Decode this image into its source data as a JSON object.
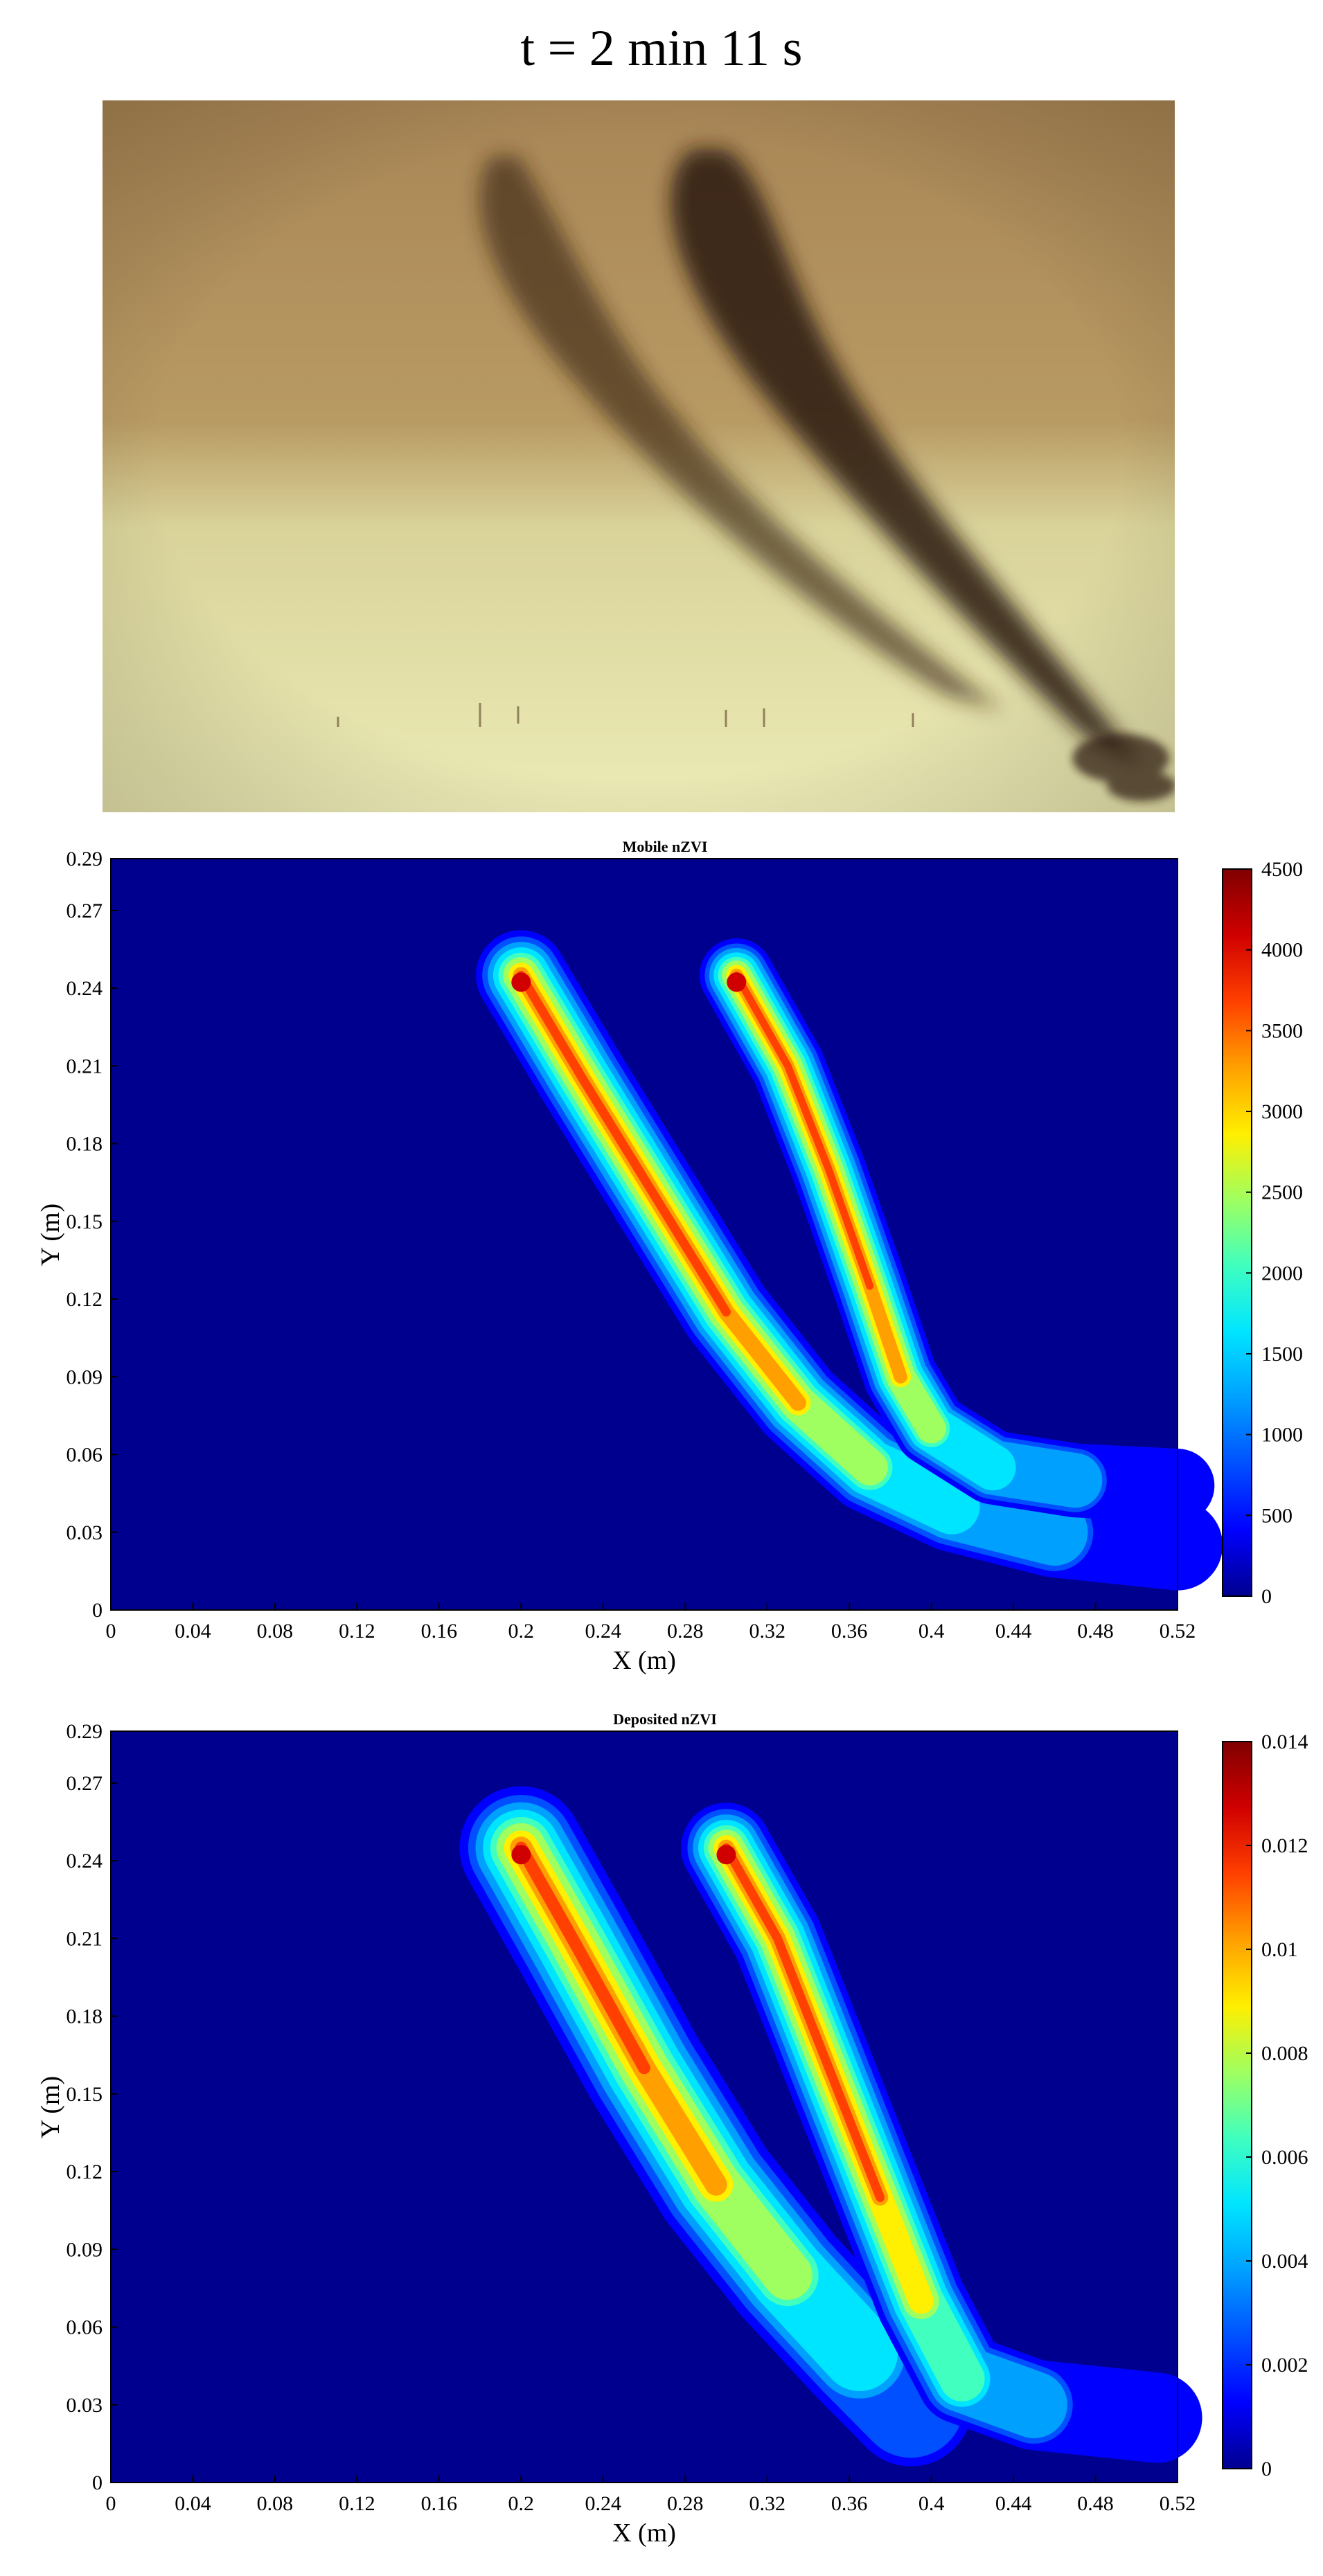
{
  "figure": {
    "title": "t = 2 min 11 s"
  },
  "colors": {
    "background_jet": "#00008f",
    "photo_sand_dark": "#b48c55",
    "photo_sand_light": "#e9e9b0",
    "plume_dark": "#2a160a"
  },
  "chart_data": [
    {
      "type": "heatmap",
      "title": "Mobile nZVI",
      "xlabel": "X (m)",
      "ylabel": "Y (m)",
      "xlim": [
        0,
        0.52
      ],
      "ylim": [
        0,
        0.29
      ],
      "x_ticks": [
        "0",
        "0.04",
        "0.08",
        "0.12",
        "0.16",
        "0.2",
        "0.24",
        "0.28",
        "0.32",
        "0.36",
        "0.4",
        "0.44",
        "0.48",
        "0.52"
      ],
      "y_ticks": [
        "0",
        "0.03",
        "0.06",
        "0.09",
        "0.12",
        "0.15",
        "0.18",
        "0.21",
        "0.24",
        "0.27",
        "0.29"
      ],
      "colorbar": {
        "min": 0,
        "max": 4500,
        "ticks": [
          "0",
          "500",
          "1000",
          "1500",
          "2000",
          "2500",
          "3000",
          "3500",
          "4000",
          "4500"
        ]
      },
      "grid": false,
      "plumes": [
        {
          "name": "",
          "path": [
            [
              0.2,
              0.245
            ],
            [
              0.23,
              0.205
            ],
            [
              0.265,
              0.16
            ],
            [
              0.3,
              0.115
            ],
            [
              0.335,
              0.08
            ],
            [
              0.37,
              0.055
            ],
            [
              0.41,
              0.04
            ],
            [
              0.46,
              0.03
            ],
            [
              0.52,
              0.025
            ]
          ],
          "width": 0.022,
          "peak": 4500
        },
        {
          "name": "",
          "path": [
            [
              0.305,
              0.245
            ],
            [
              0.33,
              0.21
            ],
            [
              0.35,
              0.17
            ],
            [
              0.37,
              0.125
            ],
            [
              0.385,
              0.09
            ],
            [
              0.4,
              0.07
            ],
            [
              0.43,
              0.055
            ],
            [
              0.47,
              0.05
            ],
            [
              0.52,
              0.048
            ]
          ],
          "width": 0.018,
          "peak": 4500
        }
      ]
    },
    {
      "type": "heatmap",
      "title": "Deposited nZVI",
      "xlabel": "X (m)",
      "ylabel": "Y (m)",
      "xlim": [
        0,
        0.52
      ],
      "ylim": [
        0,
        0.29
      ],
      "x_ticks": [
        "0",
        "0.04",
        "0.08",
        "0.12",
        "0.16",
        "0.2",
        "0.24",
        "0.28",
        "0.32",
        "0.36",
        "0.4",
        "0.44",
        "0.48",
        "0.52"
      ],
      "y_ticks": [
        "0",
        "0.03",
        "0.06",
        "0.09",
        "0.12",
        "0.15",
        "0.18",
        "0.21",
        "0.24",
        "0.27",
        "0.29"
      ],
      "colorbar": {
        "min": 0,
        "max": 0.014,
        "ticks": [
          "0",
          "0.002",
          "0.004",
          "0.006",
          "0.008",
          "0.01",
          "0.012",
          "0.014"
        ]
      },
      "grid": false,
      "plumes": [
        {
          "name": "",
          "path": [
            [
              0.2,
              0.245
            ],
            [
              0.225,
              0.21
            ],
            [
              0.26,
              0.16
            ],
            [
              0.295,
              0.115
            ],
            [
              0.33,
              0.08
            ],
            [
              0.365,
              0.05
            ],
            [
              0.39,
              0.03
            ]
          ],
          "width": 0.03,
          "peak": 0.014
        },
        {
          "name": "",
          "path": [
            [
              0.3,
              0.245
            ],
            [
              0.325,
              0.21
            ],
            [
              0.35,
              0.16
            ],
            [
              0.375,
              0.11
            ],
            [
              0.395,
              0.07
            ],
            [
              0.415,
              0.04
            ],
            [
              0.45,
              0.03
            ],
            [
              0.51,
              0.025
            ]
          ],
          "width": 0.022,
          "peak": 0.014
        }
      ]
    }
  ]
}
